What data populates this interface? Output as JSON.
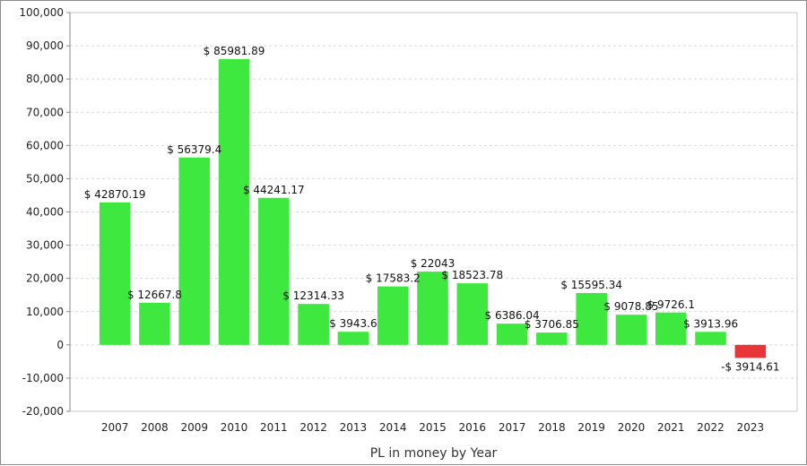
{
  "chart_data": {
    "type": "bar",
    "title": "",
    "xlabel": "PL in money by Year",
    "ylabel": "",
    "ylim": [
      -20000,
      100000
    ],
    "yticks": [
      -20000,
      -10000,
      0,
      10000,
      20000,
      30000,
      40000,
      50000,
      60000,
      70000,
      80000,
      90000,
      100000
    ],
    "ytick_labels": [
      "-20,000",
      "-10,000",
      "0",
      "10,000",
      "20,000",
      "30,000",
      "40,000",
      "50,000",
      "60,000",
      "70,000",
      "80,000",
      "90,000",
      "100,000"
    ],
    "categories": [
      "2007",
      "2008",
      "2009",
      "2010",
      "2011",
      "2012",
      "2013",
      "2014",
      "2015",
      "2016",
      "2017",
      "2018",
      "2019",
      "2020",
      "2021",
      "2022",
      "2023"
    ],
    "values": [
      42870.19,
      12667.8,
      56379.4,
      85981.89,
      44241.17,
      12314.33,
      3943.6,
      17583.2,
      22043,
      18523.78,
      6386.04,
      3706.85,
      15595.34,
      9078.85,
      9726.1,
      3913.96,
      -3914.61
    ],
    "data_labels": [
      "$ 42870.19",
      "$ 12667.8",
      "$ 56379.4",
      "$ 85981.89",
      "$ 44241.17",
      "$ 12314.33",
      "$ 3943.6",
      "$ 17583.2",
      "$ 22043",
      "$ 18523.78",
      "$ 6386.04",
      "$ 3706.85",
      "$ 15595.34",
      "$ 9078.85",
      "$ 9726.1",
      "$ 3913.96",
      "-$ 3914.61"
    ],
    "grid": true,
    "legend": "none",
    "colors": {
      "positive": "#3ee83e",
      "negative": "#e8353a",
      "grid": "#d9d9d9",
      "axis": "#888888"
    }
  }
}
